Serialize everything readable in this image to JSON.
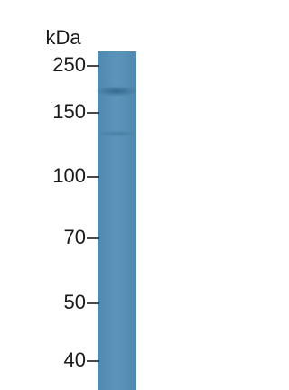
{
  "unit_label": "kDa",
  "markers": [
    250,
    150,
    100,
    70,
    50,
    40
  ]
}
